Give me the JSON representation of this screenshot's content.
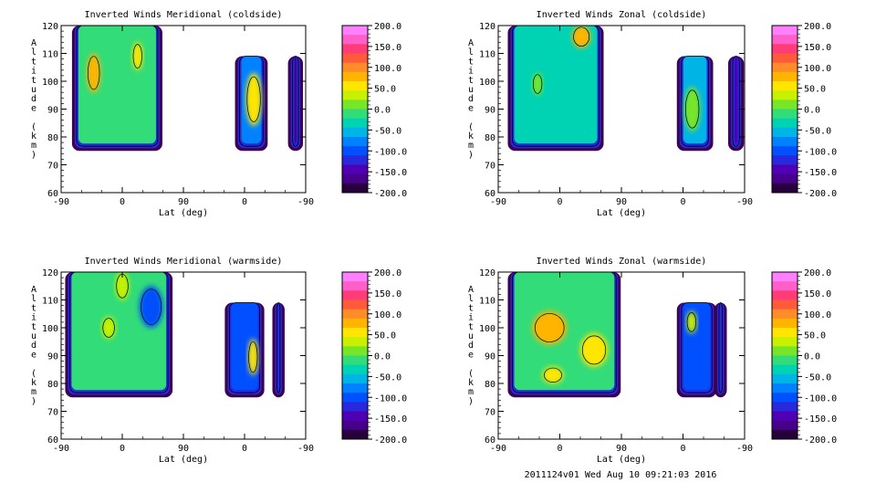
{
  "footer": "2011124v01 Wed Aug 10 09:21:03 2016",
  "colorbar": {
    "ticks": [
      "200.0",
      "150.0",
      "100.0",
      "50.0",
      "0.0",
      "-50.0",
      "-100.0",
      "-150.0",
      "-200.0"
    ],
    "colors": [
      "#ff80ff",
      "#ff5fc8",
      "#ff3c78",
      "#ff5a3c",
      "#ff8c28",
      "#ffb400",
      "#ffe600",
      "#c8f000",
      "#78e628",
      "#32dc78",
      "#00d2b4",
      "#00b4e6",
      "#0082ff",
      "#0050ff",
      "#2828dc",
      "#5000b4",
      "#46008c",
      "#28003c"
    ]
  },
  "chart_data": [
    {
      "type": "heatmap",
      "title": "Inverted Winds Meridional (coldside)",
      "xlabel": "Lat (deg)",
      "ylabel": "Altitude (km)",
      "xticks": [
        "-90",
        "0",
        "90",
        "0",
        "-90"
      ],
      "yticks": [
        "60",
        "70",
        "80",
        "90",
        "100",
        "110",
        "120"
      ],
      "ylim": [
        60,
        120
      ],
      "zlim": [
        -200,
        200
      ],
      "blobs": [
        {
          "x0": -70,
          "x1": 55,
          "y0": 76,
          "y1": 120,
          "v": -20
        },
        {
          "x0": -52,
          "x1": -32,
          "y0": 96,
          "y1": 110,
          "v": 80
        },
        {
          "x0": 15,
          "x1": 30,
          "y0": 104,
          "y1": 114,
          "v": 50
        },
        {
          "x0": 170,
          "x1": 210,
          "y0": 76,
          "y1": 109,
          "v": -80
        },
        {
          "x0": 182,
          "x1": 205,
          "y0": 84,
          "y1": 103,
          "v": 60
        },
        {
          "x0": 248,
          "x1": 262,
          "y0": 76,
          "y1": 109,
          "v": -160
        }
      ]
    },
    {
      "type": "heatmap",
      "title": "Inverted Winds Zonal (coldside)",
      "xlabel": "Lat (deg)",
      "ylabel": "Altitude (km)",
      "xticks": [
        "-90",
        "0",
        "90",
        "0",
        "-90"
      ],
      "yticks": [
        "60",
        "70",
        "80",
        "90",
        "100",
        "110",
        "120"
      ],
      "ylim": [
        60,
        120
      ],
      "zlim": [
        -200,
        200
      ],
      "blobs": [
        {
          "x0": -72,
          "x1": 60,
          "y0": 76,
          "y1": 120,
          "v": -40
        },
        {
          "x0": 18,
          "x1": 45,
          "y0": 112,
          "y1": 120,
          "v": 70
        },
        {
          "x0": -40,
          "x1": -25,
          "y0": 95,
          "y1": 103,
          "v": 10
        },
        {
          "x0": 175,
          "x1": 220,
          "y0": 76,
          "y1": 109,
          "v": -60
        },
        {
          "x0": 182,
          "x1": 205,
          "y0": 82,
          "y1": 98,
          "v": 20
        },
        {
          "x0": 250,
          "x1": 265,
          "y0": 76,
          "y1": 109,
          "v": -140
        }
      ]
    },
    {
      "type": "heatmap",
      "title": "Inverted Winds Meridional (warmside)",
      "xlabel": "Lat (deg)",
      "ylabel": "Altitude (km)",
      "xticks": [
        "-90",
        "0",
        "90",
        "0",
        "-90"
      ],
      "yticks": [
        "60",
        "70",
        "80",
        "90",
        "100",
        "110",
        "120"
      ],
      "ylim": [
        60,
        120
      ],
      "zlim": [
        -200,
        200
      ],
      "blobs": [
        {
          "x0": -80,
          "x1": 70,
          "y0": 76,
          "y1": 120,
          "v": -20
        },
        {
          "x0": 25,
          "x1": 60,
          "y0": 100,
          "y1": 115,
          "v": -90
        },
        {
          "x0": -10,
          "x1": 10,
          "y0": 110,
          "y1": 120,
          "v": 40
        },
        {
          "x0": -30,
          "x1": -10,
          "y0": 96,
          "y1": 104,
          "v": 30
        },
        {
          "x0": 155,
          "x1": 205,
          "y0": 76,
          "y1": 109,
          "v": -90
        },
        {
          "x0": 185,
          "x1": 200,
          "y0": 83,
          "y1": 96,
          "v": 60
        },
        {
          "x0": 225,
          "x1": 235,
          "y0": 76,
          "y1": 109,
          "v": -150
        }
      ]
    },
    {
      "type": "heatmap",
      "title": "Inverted Winds Zonal (warmside)",
      "xlabel": "Lat (deg)",
      "ylabel": "Altitude (km)",
      "xticks": [
        "-90",
        "0",
        "90",
        "0",
        "-90"
      ],
      "yticks": [
        "60",
        "70",
        "80",
        "90",
        "100",
        "110",
        "120"
      ],
      "ylim": [
        60,
        120
      ],
      "zlim": [
        -200,
        200
      ],
      "blobs": [
        {
          "x0": -72,
          "x1": 85,
          "y0": 76,
          "y1": 120,
          "v": -20
        },
        {
          "x0": -40,
          "x1": 10,
          "y0": 94,
          "y1": 106,
          "v": 70
        },
        {
          "x0": 30,
          "x1": 70,
          "y0": 86,
          "y1": 98,
          "v": 50
        },
        {
          "x0": -25,
          "x1": 5,
          "y0": 80,
          "y1": 86,
          "v": 60
        },
        {
          "x0": 175,
          "x1": 225,
          "y0": 76,
          "y1": 109,
          "v": -90
        },
        {
          "x0": 185,
          "x1": 200,
          "y0": 98,
          "y1": 106,
          "v": 30
        },
        {
          "x0": 230,
          "x1": 240,
          "y0": 76,
          "y1": 109,
          "v": -150
        }
      ]
    }
  ]
}
